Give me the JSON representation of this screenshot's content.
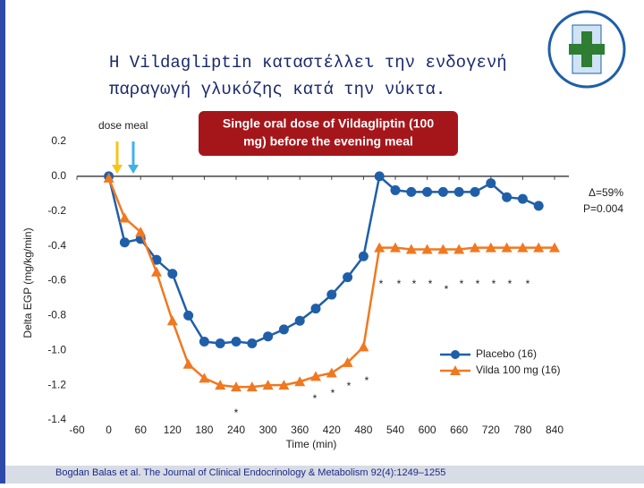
{
  "chart_data": {
    "type": "line",
    "title": [
      "Η Vildagliptin καταστέλλει την ενδογενή",
      "παραγωγή γλυκόζης κατά την νύκτα."
    ],
    "x_label": "Time (min)",
    "y_label": "Delta EGP (mg/kg/min)",
    "annotations": {
      "dose_meal": "dose meal",
      "box": [
        "Single oral dose of Vildagliptin (100",
        "mg) before the evening meal"
      ],
      "delta": [
        "Δ=59%",
        "P=0.004"
      ],
      "citation": "Bogdan Balas et al. The Journal of Clinical Endocrinology & Metabolism 92(4):1249–1255",
      "asterisks": [
        "*",
        "*",
        "*",
        "*",
        "*",
        "*",
        "*",
        "*",
        "*",
        "*",
        "*",
        "*",
        "*",
        "*",
        "*",
        "*"
      ]
    },
    "x": [
      0,
      30,
      60,
      90,
      120,
      150,
      180,
      210,
      240,
      270,
      300,
      330,
      360,
      390,
      420,
      450,
      480,
      510,
      540,
      570,
      600,
      630,
      660,
      690,
      720,
      750,
      780,
      810,
      840
    ],
    "series": [
      {
        "name": "Placebo (16)",
        "color": "#1f5fa8",
        "marker": "circle",
        "values": [
          0.0,
          -0.38,
          -0.36,
          -0.48,
          -0.56,
          -0.8,
          -0.95,
          -0.96,
          -0.95,
          -0.96,
          -0.92,
          -0.88,
          -0.83,
          -0.76,
          -0.68,
          -0.58,
          -0.46,
          0.0,
          -0.08,
          -0.09,
          -0.09,
          -0.09,
          -0.09,
          -0.09,
          -0.04,
          -0.12,
          -0.13,
          -0.17,
          null
        ]
      },
      {
        "name": "Vilda 100 mg (16)",
        "color": "#f07820",
        "marker": "triangle",
        "values": [
          -0.01,
          -0.24,
          -0.32,
          -0.55,
          -0.83,
          -1.08,
          -1.16,
          -1.2,
          -1.21,
          -1.21,
          -1.2,
          -1.2,
          -1.18,
          -1.15,
          -1.13,
          -1.07,
          -0.98,
          -0.41,
          -0.41,
          -0.42,
          -0.42,
          -0.42,
          -0.42,
          -0.41,
          -0.41,
          -0.41,
          -0.41,
          -0.41,
          -0.41
        ]
      }
    ],
    "xlim": [
      -60,
      840
    ],
    "ylim": [
      -1.4,
      0.2
    ],
    "xticks": [
      -60,
      0,
      60,
      120,
      180,
      240,
      300,
      360,
      420,
      480,
      540,
      600,
      660,
      720,
      780,
      840
    ],
    "yticks": [
      0.2,
      {
        "value": 0,
        "label": "0.0"
      },
      -0.2,
      -0.4,
      -0.6,
      -0.8,
      {
        "value": -1,
        "label": "-1.0"
      },
      -1.2,
      -1.4
    ],
    "legend": "lower right"
  }
}
